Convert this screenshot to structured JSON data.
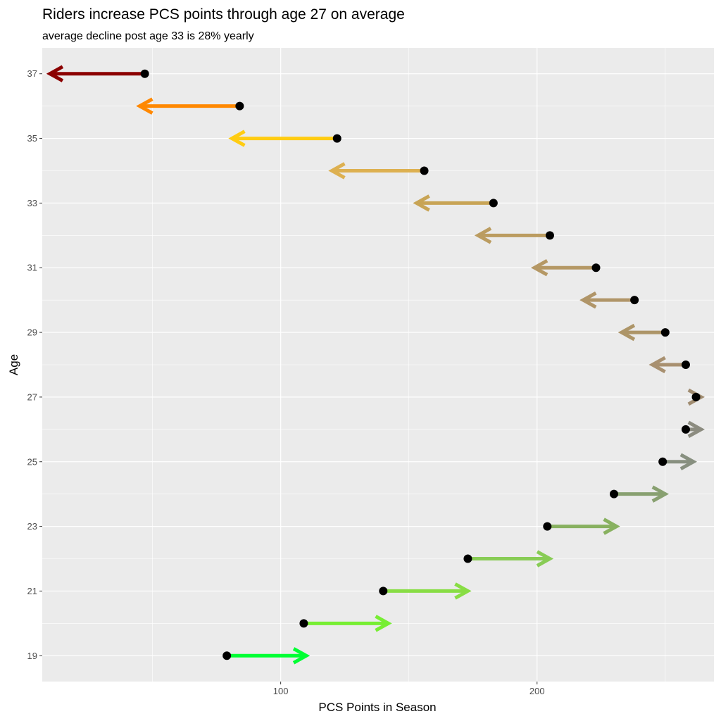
{
  "chart_data": {
    "type": "arrow",
    "title": "Riders increase PCS points through age 27 on average",
    "subtitle": "average decline post age 33 is 28% yearly",
    "xlabel": "PCS Points in Season",
    "ylabel": "Age",
    "xlim": [
      7,
      269
    ],
    "ylim": [
      18.2,
      37.8
    ],
    "x_ticks": [
      100,
      200
    ],
    "y_ticks": [
      19,
      21,
      23,
      25,
      27,
      29,
      31,
      33,
      35,
      37
    ],
    "grid": true,
    "legend": "none",
    "panel_background": "#ebebeb",
    "point_color": "#000000",
    "data": [
      {
        "age": 19,
        "from": 79,
        "to": 110,
        "color": "#00ff33"
      },
      {
        "age": 20,
        "from": 109,
        "to": 142,
        "color": "#77ee33"
      },
      {
        "age": 21,
        "from": 140,
        "to": 173,
        "color": "#88dd44"
      },
      {
        "age": 22,
        "from": 173,
        "to": 205,
        "color": "#88cc55"
      },
      {
        "age": 23,
        "from": 204,
        "to": 231,
        "color": "#88b160"
      },
      {
        "age": 24,
        "from": 230,
        "to": 250,
        "color": "#88a070"
      },
      {
        "age": 25,
        "from": 249,
        "to": 261,
        "color": "#889080"
      },
      {
        "age": 26,
        "from": 258,
        "to": 264,
        "color": "#8c8c80"
      },
      {
        "age": 27,
        "from": 262,
        "to": 264,
        "color": "#a08c70"
      },
      {
        "age": 28,
        "from": 258,
        "to": 245,
        "color": "#a89070"
      },
      {
        "age": 29,
        "from": 250,
        "to": 233,
        "color": "#ad9568"
      },
      {
        "age": 30,
        "from": 238,
        "to": 218,
        "color": "#b09568"
      },
      {
        "age": 31,
        "from": 223,
        "to": 199,
        "color": "#b59865"
      },
      {
        "age": 32,
        "from": 205,
        "to": 177,
        "color": "#bb9c60"
      },
      {
        "age": 33,
        "from": 183,
        "to": 153,
        "color": "#c8a455"
      },
      {
        "age": 34,
        "from": 156,
        "to": 120,
        "color": "#ddb050"
      },
      {
        "age": 35,
        "from": 122,
        "to": 81,
        "color": "#ffcc11"
      },
      {
        "age": 36,
        "from": 84,
        "to": 45,
        "color": "#ff8800"
      },
      {
        "age": 37,
        "from": 47,
        "to": 10,
        "color": "#8b0000"
      }
    ]
  }
}
